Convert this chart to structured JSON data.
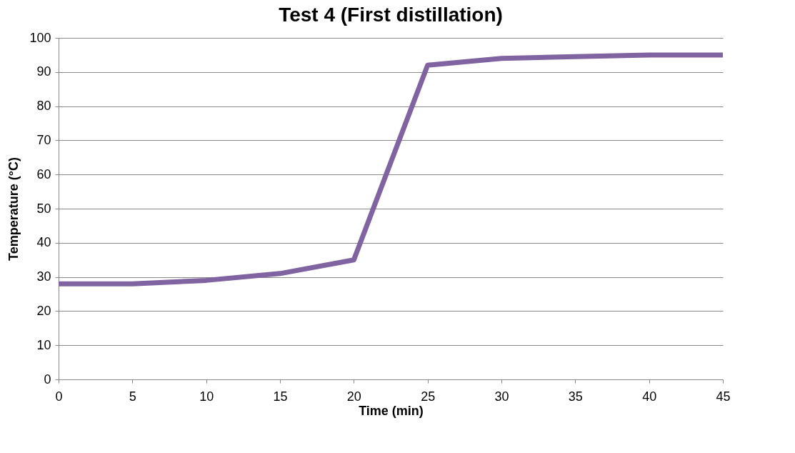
{
  "chart_data": {
    "type": "line",
    "title": "Test 4 (First distillation)",
    "xlabel": "Time (min)",
    "ylabel": "Temperature (°C)",
    "x": [
      0,
      5,
      10,
      15,
      20,
      25,
      30,
      35,
      40,
      45
    ],
    "series": [
      {
        "color": "#8064a2",
        "values": [
          28,
          28,
          29,
          31,
          35,
          92,
          94,
          94.5,
          95,
          95
        ]
      }
    ],
    "xlim": [
      0,
      45
    ],
    "xticks": [
      0,
      5,
      10,
      15,
      20,
      25,
      30,
      35,
      40,
      45
    ],
    "ylim": [
      0,
      100
    ],
    "yticks": [
      0,
      10,
      20,
      30,
      40,
      50,
      60,
      70,
      80,
      90,
      100
    ],
    "grid": "y",
    "legend": false,
    "marker": "none",
    "line_style": "solid"
  }
}
